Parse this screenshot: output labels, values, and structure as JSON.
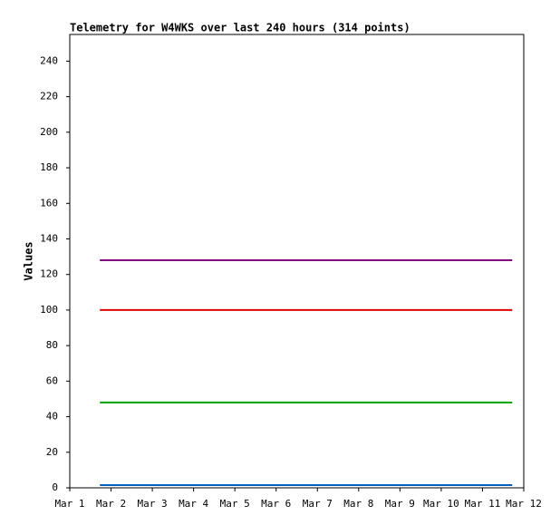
{
  "chart_data": {
    "type": "line",
    "title": "Telemetry for W4WKS over last 240 hours (314 points)",
    "y_label": "Values",
    "x": [
      1.73,
      11.72
    ],
    "xlim": [
      1,
      12
    ],
    "xticks": [
      {
        "value": 1,
        "label": "Mar 1"
      },
      {
        "value": 2,
        "label": "Mar 2"
      },
      {
        "value": 3,
        "label": "Mar 3"
      },
      {
        "value": 4,
        "label": "Mar 4"
      },
      {
        "value": 5,
        "label": "Mar 5"
      },
      {
        "value": 6,
        "label": "Mar 6"
      },
      {
        "value": 7,
        "label": "Mar 7"
      },
      {
        "value": 8,
        "label": "Mar 8"
      },
      {
        "value": 9,
        "label": "Mar 9"
      },
      {
        "value": 10,
        "label": "Mar 10"
      },
      {
        "value": 11,
        "label": "Mar 11"
      },
      {
        "value": 12,
        "label": "Mar 12"
      }
    ],
    "ylim": [
      0,
      255
    ],
    "yticks": [
      0,
      20,
      40,
      60,
      80,
      100,
      120,
      140,
      160,
      180,
      200,
      220,
      240
    ],
    "grid": false,
    "series": [
      {
        "color": "#800080",
        "values": [
          128,
          128
        ]
      },
      {
        "color": "#dd0000",
        "values": [
          100,
          100
        ]
      },
      {
        "color": "#00a000",
        "values": [
          48,
          48
        ]
      },
      {
        "color": "#0060c0",
        "values": [
          1.5,
          1.5
        ]
      }
    ]
  }
}
